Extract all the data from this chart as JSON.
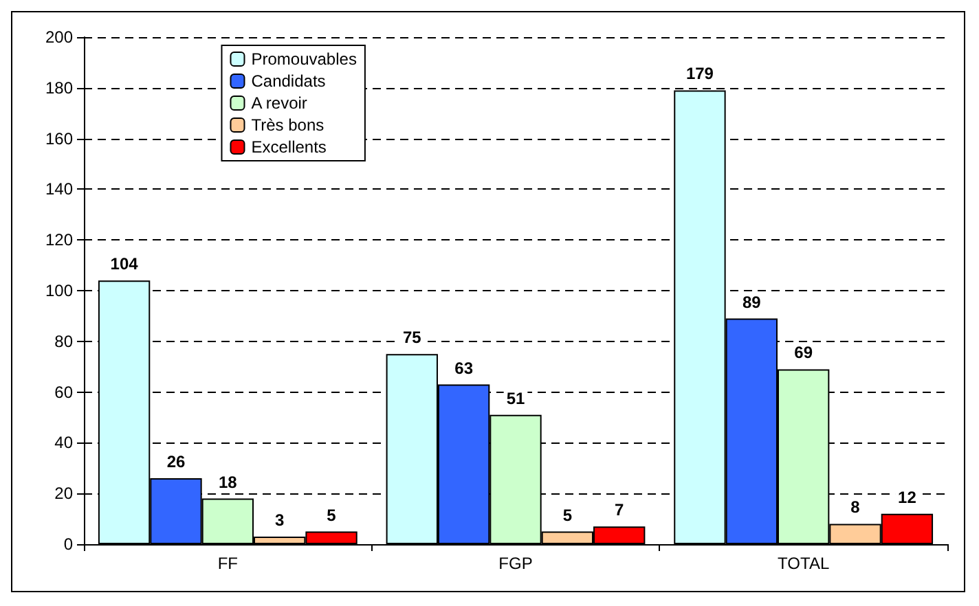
{
  "chart_data": {
    "type": "bar",
    "categories": [
      "FF",
      "FGP",
      "TOTAL"
    ],
    "series": [
      {
        "name": "Promouvables",
        "color": "#ccffff",
        "values": [
          104,
          75,
          179
        ]
      },
      {
        "name": "Candidats",
        "color": "#3366ff",
        "values": [
          26,
          63,
          89
        ]
      },
      {
        "name": "A revoir",
        "color": "#ccffcc",
        "values": [
          18,
          51,
          69
        ]
      },
      {
        "name": "Très bons",
        "color": "#ffcc99",
        "values": [
          3,
          5,
          8
        ]
      },
      {
        "name": "Excellents",
        "color": "#ff0000",
        "values": [
          5,
          7,
          12
        ]
      }
    ],
    "ylim": [
      0,
      200
    ],
    "yticks": [
      0,
      20,
      40,
      60,
      80,
      100,
      120,
      140,
      160,
      180,
      200
    ],
    "grid": "y",
    "legend": "top left",
    "data_labels": true
  }
}
